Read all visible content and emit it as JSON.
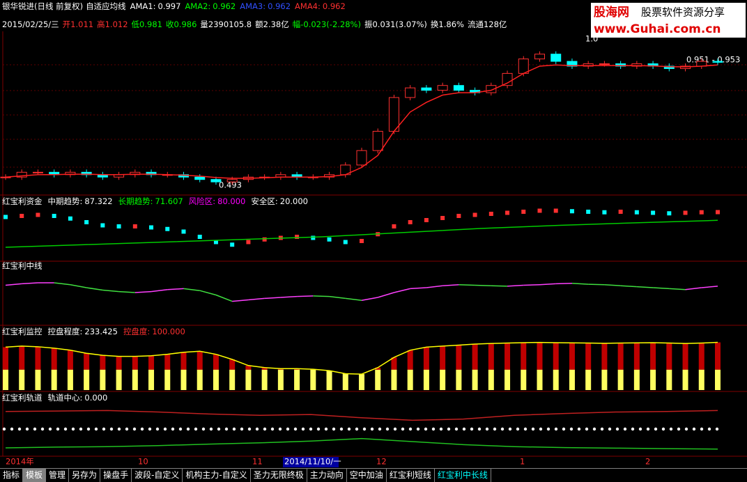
{
  "header": {
    "security": "银华锐进(日线 前复权)",
    "indicator": "自适应均线",
    "ama": [
      {
        "label": "AMA1:",
        "value": "0.997",
        "color": "#ffffff"
      },
      {
        "label": "AMA2:",
        "value": "0.962",
        "color": "#00ff00"
      },
      {
        "label": "AMA3:",
        "value": "0.962",
        "color": "#3050ff"
      },
      {
        "label": "AMA4:",
        "value": "0.962",
        "color": "#ff3030"
      }
    ]
  },
  "quote": {
    "date": "2015/02/25/三",
    "fields": [
      {
        "label": "开",
        "value": "1.011",
        "color": "#ff3030"
      },
      {
        "label": "高",
        "value": "1.012",
        "color": "#ff3030"
      },
      {
        "label": "低",
        "value": "0.981",
        "color": "#00ff00"
      },
      {
        "label": "收",
        "value": "0.986",
        "color": "#00ff00"
      },
      {
        "label": "量",
        "value": "2390105.8",
        "color": "#ffffff"
      },
      {
        "label": "额",
        "value": "2.38亿",
        "color": "#ffffff"
      },
      {
        "label": "幅",
        "value": "-0.023(-2.28%)",
        "color": "#00ff00"
      },
      {
        "label": "振",
        "value": "0.031(3.07%)",
        "color": "#ffffff"
      },
      {
        "label": "换",
        "value": "1.86%",
        "color": "#ffffff"
      },
      {
        "label": "流通",
        "value": "128亿",
        "color": "#ffffff"
      }
    ]
  },
  "logo": {
    "name": "股海网",
    "slogan": "股票软件资源分享",
    "url": "www.Guhai.com.cn"
  },
  "price_panel": {
    "ylim": [
      0.45,
      1.1
    ],
    "closes": [
      0.51,
      0.53,
      0.53,
      0.52,
      0.53,
      0.52,
      0.51,
      0.52,
      0.53,
      0.52,
      0.52,
      0.51,
      0.5,
      0.49,
      0.5,
      0.51,
      0.51,
      0.52,
      0.51,
      0.51,
      0.52,
      0.56,
      0.62,
      0.7,
      0.84,
      0.88,
      0.87,
      0.89,
      0.87,
      0.86,
      0.89,
      0.94,
      1.0,
      1.02,
      0.99,
      0.97,
      0.98,
      0.98,
      0.97,
      0.98,
      0.97,
      0.96,
      0.97,
      0.99,
      0.986
    ],
    "ama": [
      0.51,
      0.515,
      0.52,
      0.52,
      0.522,
      0.522,
      0.52,
      0.52,
      0.522,
      0.522,
      0.52,
      0.518,
      0.514,
      0.508,
      0.505,
      0.505,
      0.507,
      0.51,
      0.51,
      0.51,
      0.512,
      0.52,
      0.55,
      0.6,
      0.7,
      0.78,
      0.82,
      0.85,
      0.86,
      0.86,
      0.87,
      0.9,
      0.94,
      0.97,
      0.975,
      0.972,
      0.972,
      0.973,
      0.972,
      0.972,
      0.971,
      0.968,
      0.967,
      0.97,
      0.975
    ],
    "annotations": [
      "0.493",
      "1.0",
      "0.951 - 0.953"
    ]
  },
  "fund_panel": {
    "title": "红宝利资金",
    "items": [
      {
        "label": "中期趋势:",
        "value": "87.322",
        "color": "#ffffff"
      },
      {
        "label": "长期趋势:",
        "value": "71.607",
        "color": "#00ff00"
      },
      {
        "label": "风险区:",
        "value": "80.000",
        "color": "#ff00ff"
      },
      {
        "label": "安全区:",
        "value": "20.000",
        "color": "#ffffff"
      }
    ],
    "ylim": [
      0,
      100
    ],
    "mid": [
      78,
      80,
      82,
      80,
      75,
      68,
      62,
      60,
      60,
      58,
      55,
      50,
      40,
      30,
      25,
      30,
      35,
      38,
      40,
      38,
      35,
      30,
      32,
      45,
      60,
      68,
      72,
      76,
      80,
      82,
      84,
      86,
      88,
      90,
      90,
      89,
      88,
      87,
      88,
      87,
      86,
      85,
      86,
      87,
      87.3
    ],
    "long": [
      20,
      25,
      30,
      35,
      40,
      48,
      56,
      62,
      67,
      71.6
    ]
  },
  "mid_panel": {
    "title": "红宝利中线",
    "ylim": [
      0,
      100
    ],
    "values": [
      75,
      78,
      80,
      80,
      76,
      70,
      65,
      62,
      60,
      62,
      66,
      68,
      64,
      55,
      42,
      45,
      48,
      50,
      52,
      53,
      52,
      48,
      44,
      50,
      60,
      68,
      70,
      74,
      76,
      75,
      74,
      73,
      75,
      76,
      78,
      79,
      77,
      76,
      74,
      72,
      70,
      68,
      66,
      70,
      73
    ]
  },
  "monitor_panel": {
    "title": "红宝利监控",
    "items": [
      {
        "label": "控盘程度:",
        "value": "233.425",
        "color": "#ffffff"
      },
      {
        "label": "控盘度:",
        "value": "100.000",
        "color": "#ff3030"
      }
    ],
    "ylim": [
      0,
      300
    ],
    "values": [
      210,
      215,
      212,
      205,
      195,
      180,
      170,
      165,
      165,
      168,
      175,
      185,
      190,
      175,
      150,
      120,
      110,
      105,
      105,
      102,
      95,
      80,
      78,
      110,
      160,
      195,
      210,
      215,
      220,
      225,
      228,
      230,
      232,
      233,
      232,
      231,
      230,
      229,
      230,
      231,
      232,
      230,
      228,
      230,
      233.425
    ],
    "threshold": 100
  },
  "track_panel": {
    "title": "红宝利轨道",
    "center_label": "轨道中心:",
    "center": {
      "value": 0,
      "label": "0.000"
    },
    "ylim": [
      -1,
      1
    ],
    "upper": [
      0.7,
      0.72,
      0.74,
      0.68,
      0.6,
      0.55,
      0.58,
      0.45,
      0.35,
      0.4,
      0.55,
      0.62,
      0.68,
      0.7,
      0.74
    ],
    "lower": [
      -0.75,
      -0.72,
      -0.7,
      -0.66,
      -0.6,
      -0.55,
      -0.48,
      -0.38,
      -0.5,
      -0.62,
      -0.7,
      -0.74,
      -0.76,
      -0.78,
      -0.8
    ]
  },
  "date_axis": [
    "2014年",
    "10",
    "11",
    "2014/11/10/一",
    "12",
    "1",
    "2"
  ],
  "tabs": [
    "指标",
    "模板",
    "管理",
    "另存为",
    "操盘手",
    "波段-自定义",
    "机构主力-自定义",
    "圣力无限终极",
    "主力动向",
    "空中加油",
    "红宝利短线",
    "红宝利中长线"
  ]
}
